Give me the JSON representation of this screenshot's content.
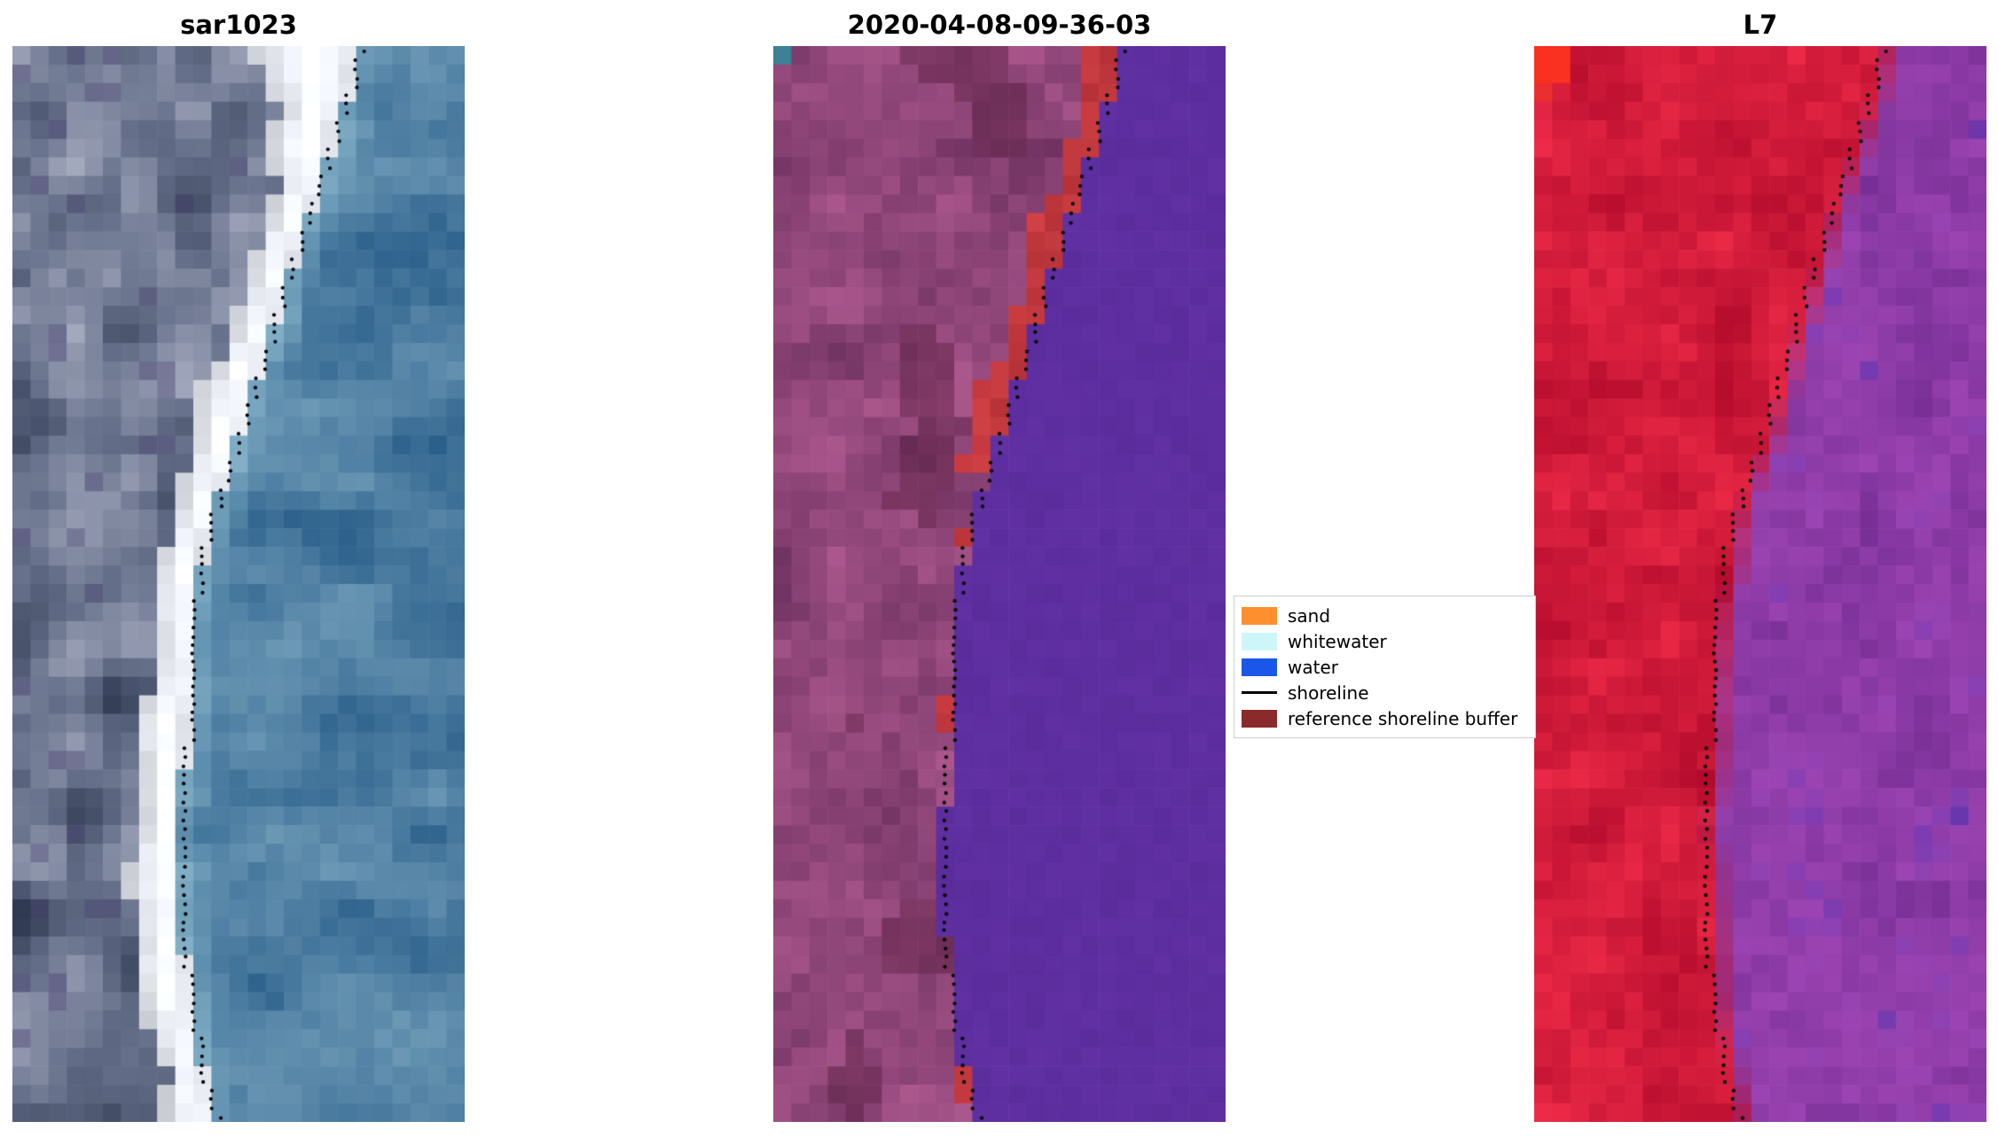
{
  "figure": {
    "background": "#ffffff"
  },
  "chart_data": {
    "type": "heatmap",
    "layout": "1x3 pixelated satellite image panels sharing one dotted shoreline overlay",
    "panels": [
      {
        "title": "sar1023",
        "kind": "sar_rgb_image",
        "description": "SAR backscatter RGB: mottled dark slate-blue land on the left, bright white beach/surf band, medium blue ocean on the right, dotted black shoreline along the seaward edge of the white band",
        "palette": {
          "land_dark": "#222c44",
          "land_mid": "#66708a",
          "land_light": "#b2b7ca",
          "beach": "#ffffff",
          "sea": "#3c6e9a",
          "surf_fringe": "#afdce8"
        }
      },
      {
        "title": "2020-04-08-09-36-03",
        "kind": "classified_image",
        "description": "Classified scene: mottled mauve/purple land, dark red reference-shoreline-buffer band hugging the coast (wide in the upper half, thin and intermittent below), flat indigo water, single teal pixel at top-left, dotted black shoreline",
        "palette": {
          "land": "#8f4478",
          "buffer_red": "#b9343a",
          "water": "#5c2d9e",
          "teal_pixel": "#3e8094"
        }
      },
      {
        "title": "L7",
        "kind": "false_color_image",
        "description": "Landsat-7 false colour: crimson-red land on the left, purple water with darker indigo patches on the right, bright red blob in the top-left corner, dotted black shoreline at the red/purple boundary",
        "palette": {
          "land": "#c81e3c",
          "sea": "#8c3fa8",
          "sea_dark": "#5430a8",
          "hot_corner": "#fa3020"
        }
      }
    ],
    "shoreline": {
      "color": "#000000",
      "style": "dotted",
      "points_t_x": [
        [
          0.0,
          0.775
        ],
        [
          0.05,
          0.745
        ],
        [
          0.1,
          0.705
        ],
        [
          0.16,
          0.655
        ],
        [
          0.22,
          0.61
        ],
        [
          0.3,
          0.555
        ],
        [
          0.38,
          0.49
        ],
        [
          0.45,
          0.435
        ],
        [
          0.52,
          0.408
        ],
        [
          0.6,
          0.398
        ],
        [
          0.68,
          0.385
        ],
        [
          0.75,
          0.375
        ],
        [
          0.82,
          0.38
        ],
        [
          0.9,
          0.4
        ],
        [
          0.96,
          0.428
        ],
        [
          1.0,
          0.455
        ]
      ]
    },
    "legend_position": "center right, between panel 2 and panel 3"
  },
  "legend": {
    "items": [
      {
        "label": "sand",
        "swatch": "#fd8f2f",
        "kind": "patch"
      },
      {
        "label": "whitewater",
        "swatch": "#cdf6fa",
        "kind": "patch"
      },
      {
        "label": "water",
        "swatch": "#1a56e8",
        "kind": "patch"
      },
      {
        "label": "shoreline",
        "swatch": "#000000",
        "kind": "line"
      },
      {
        "label": "reference shoreline buffer",
        "swatch": "#8b2a2a",
        "kind": "patch"
      }
    ]
  }
}
